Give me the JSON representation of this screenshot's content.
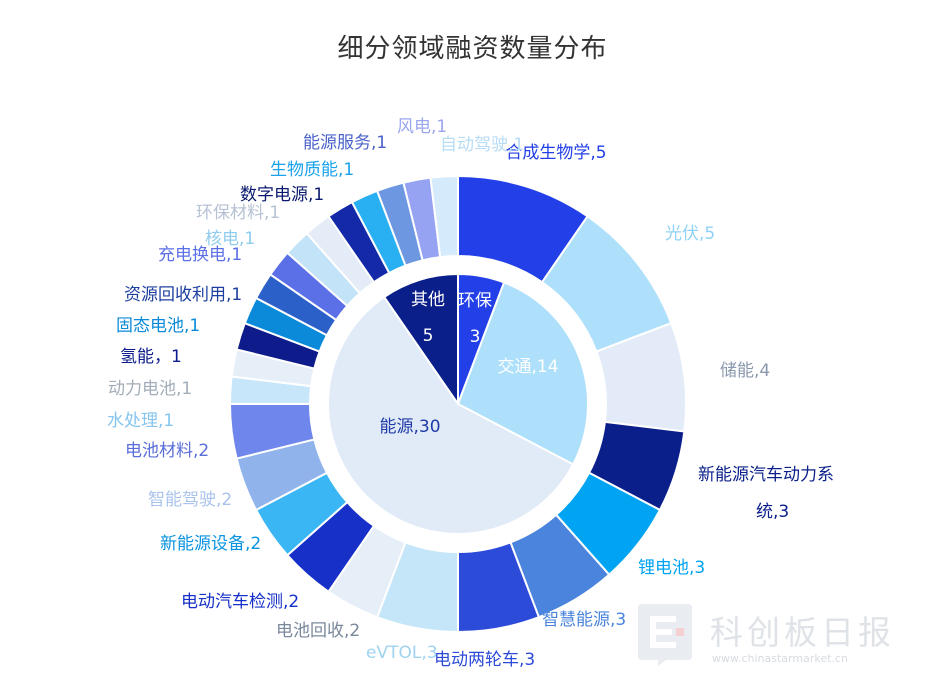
{
  "title": "细分领域融资数量分布",
  "watermark": {
    "name": "科创板日报",
    "url": "www.chinastarmarket.cn"
  },
  "chart_data": {
    "type": "pie",
    "inner": [
      {
        "label": "能源,30",
        "value": 30,
        "color": "#e1ebf7",
        "textColor": "#1f3aa8"
      },
      {
        "label": "其他",
        "value2": "5",
        "value": 5,
        "color": "#0b1f8a",
        "textColor": "#ffffff"
      },
      {
        "label": "环保",
        "value2": "3",
        "value": 3,
        "color": "#2340e8",
        "textColor": "#ffffff"
      },
      {
        "label": "交通,14",
        "value": 14,
        "color": "#aee0fb",
        "textColor": "#ffffff"
      }
    ],
    "outer": [
      {
        "label": "合成生物学,5",
        "value": 5,
        "color": "#2340e8",
        "textColor": "#2340e8"
      },
      {
        "label": "光伏,5",
        "value": 5,
        "color": "#aee0fb",
        "textColor": "#8fd2f5"
      },
      {
        "label": "储能,4",
        "value": 4,
        "color": "#e2ebf7",
        "textColor": "#8a98ad"
      },
      {
        "label": "新能源汽车动力系统,3",
        "value": 3,
        "color": "#0b1f8a",
        "textColor": "#0b1f8a",
        "line1": "新能源汽车动力系",
        "line2": "统,3"
      },
      {
        "label": "锂电池,3",
        "value": 3,
        "color": "#00a4f3",
        "textColor": "#00a4f3"
      },
      {
        "label": "智慧能源,3",
        "value": 3,
        "color": "#4a84dc",
        "textColor": "#4a84dc"
      },
      {
        "label": "电动两轮车,3",
        "value": 3,
        "color": "#2d4bd9",
        "textColor": "#2d4bd9"
      },
      {
        "label": "eVTOL,3",
        "value": 3,
        "color": "#c5e5f8",
        "textColor": "#9fd3f0"
      },
      {
        "label": "电池回收,2",
        "value": 2,
        "color": "#e6eef8",
        "textColor": "#7a889c"
      },
      {
        "label": "电动汽车检测,2",
        "value": 2,
        "color": "#1630c8",
        "textColor": "#1630c8"
      },
      {
        "label": "新能源设备,2",
        "value": 2,
        "color": "#3ab6f4",
        "textColor": "#0a93e0"
      },
      {
        "label": "智能驾驶,2",
        "value": 2,
        "color": "#8fb3ea",
        "textColor": "#a9c3ec"
      },
      {
        "label": "电池材料,2",
        "value": 2,
        "color": "#6f86ec",
        "textColor": "#5b6fd8"
      },
      {
        "label": "水处理,1",
        "value": 1,
        "color": "#c7e6fa",
        "textColor": "#86c5ef"
      },
      {
        "label": "动力电池,1",
        "value": 1,
        "color": "#e6eef8",
        "textColor": "#a3adb9"
      },
      {
        "label": "氢能，1",
        "value": 1,
        "color": "#0d1c8a",
        "textColor": "#0d1c8a"
      },
      {
        "label": "固态电池,1",
        "value": 1,
        "color": "#0a8ad9",
        "textColor": "#0a8ad9"
      },
      {
        "label": "资源回收利用,1",
        "value": 1,
        "color": "#2a60c8",
        "textColor": "#1e3fa0"
      },
      {
        "label": "充电换电,1",
        "value": 1,
        "color": "#5b70e6",
        "textColor": "#5b70e6"
      },
      {
        "label": "核电,1",
        "value": 1,
        "color": "#c3e4f8",
        "textColor": "#8fccef"
      },
      {
        "label": "环保材料,1",
        "value": 1,
        "color": "#e4ecf7",
        "textColor": "#b6c2d4"
      },
      {
        "label": "数字电源,1",
        "value": 1,
        "color": "#1329a8",
        "textColor": "#0b1a6e"
      },
      {
        "label": "生物质能,1",
        "value": 1,
        "color": "#29b0f2",
        "textColor": "#1aa2ec"
      },
      {
        "label": "能源服务,1",
        "value": 1,
        "color": "#6d97e0",
        "textColor": "#4a62c9"
      },
      {
        "label": "风电,1",
        "value": 1,
        "color": "#95a3f2",
        "textColor": "#9aa6ef"
      },
      {
        "label": "自动驾驶,1",
        "value": 1,
        "color": "#d5ebfb",
        "textColor": "#b7dcf5"
      }
    ]
  }
}
